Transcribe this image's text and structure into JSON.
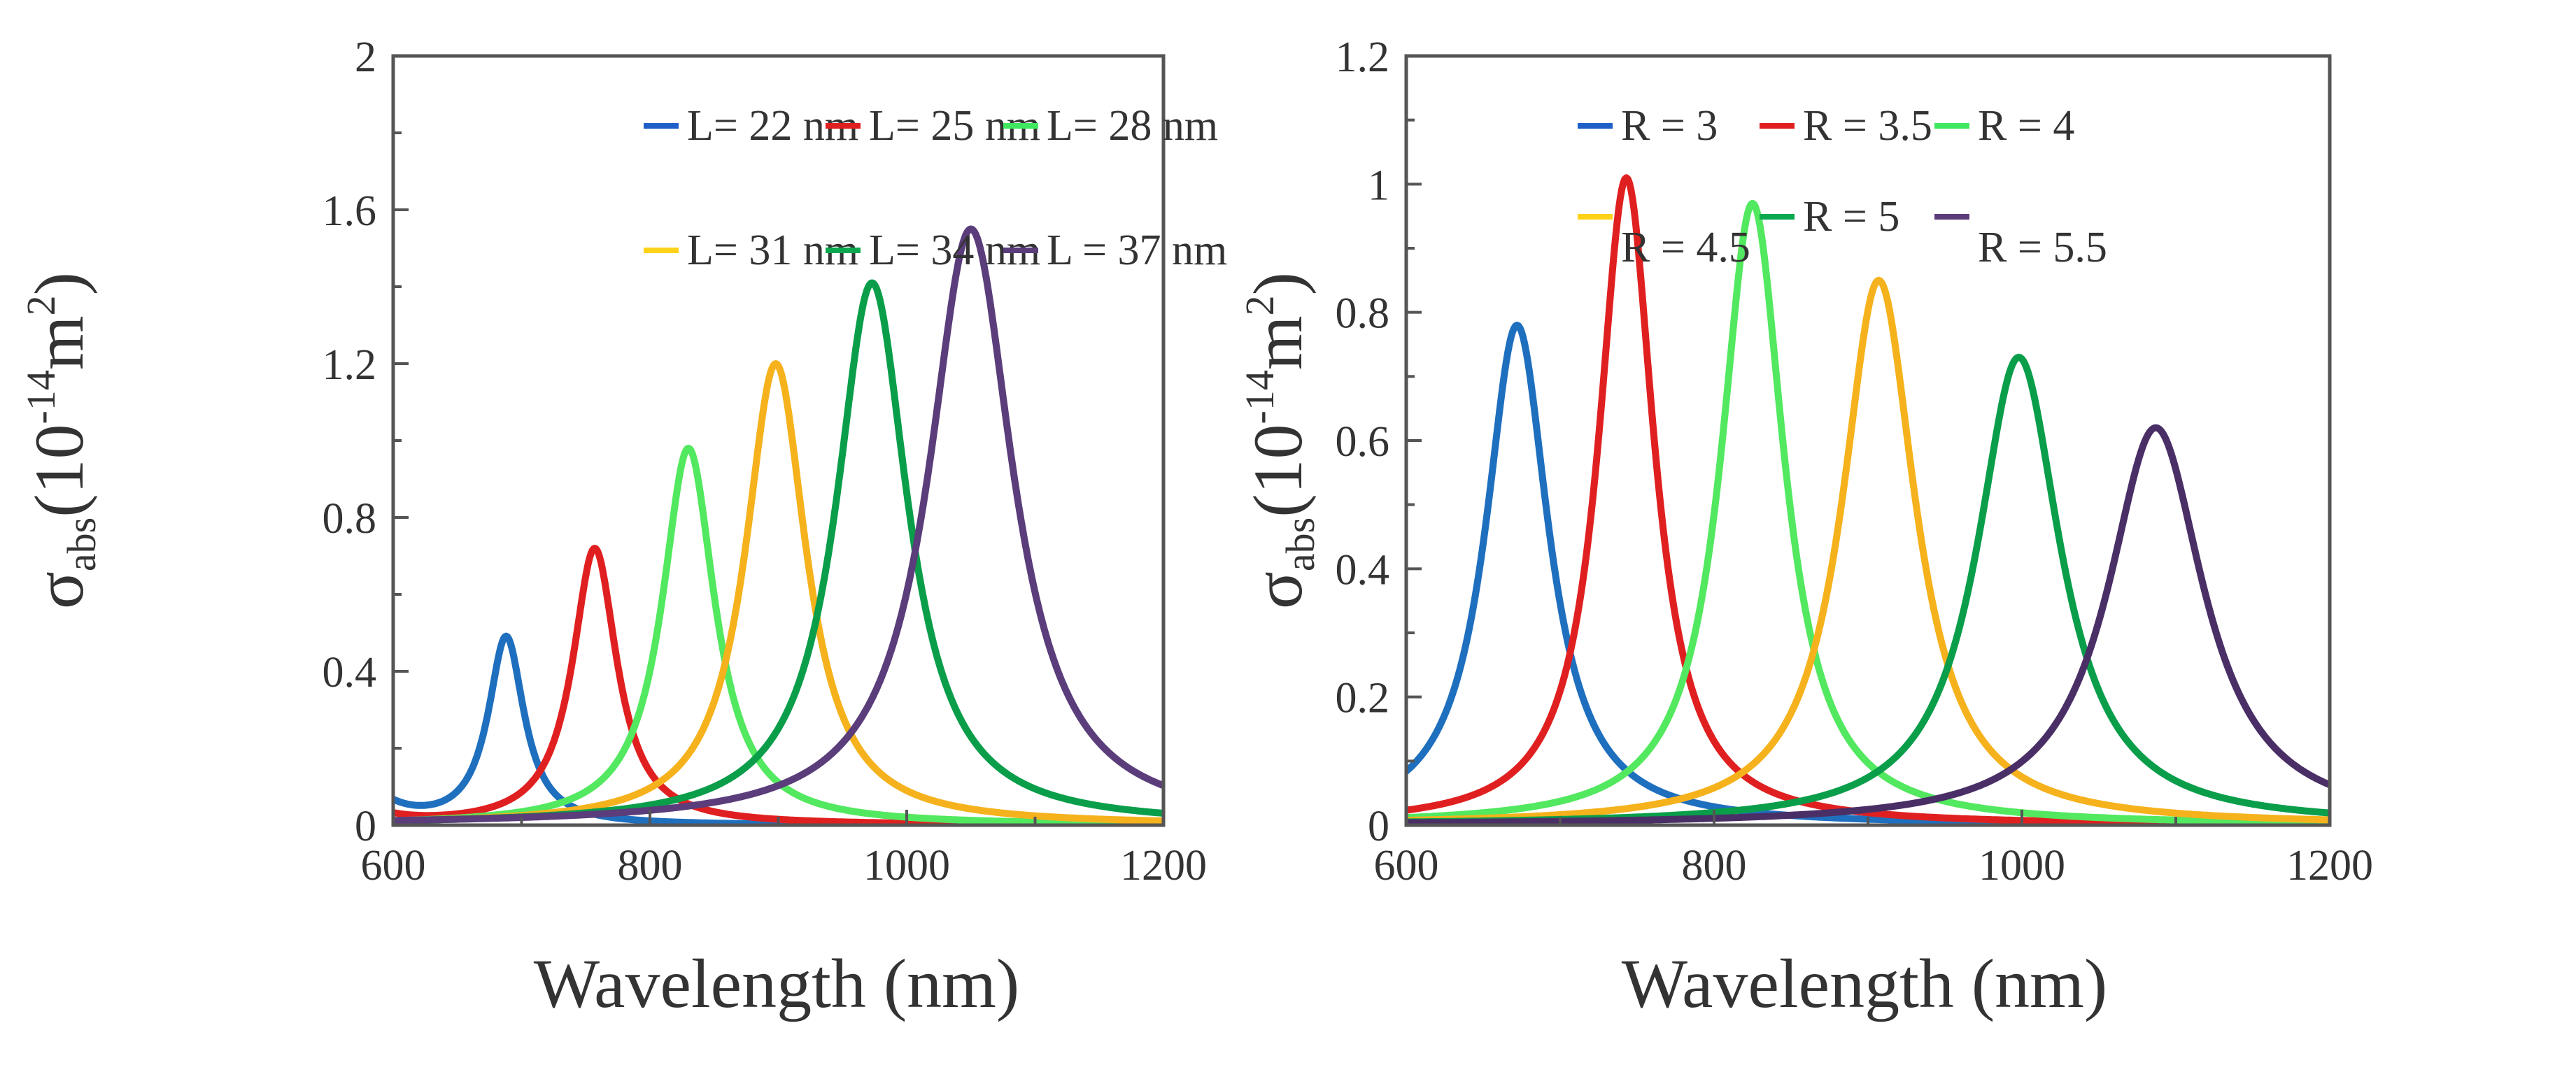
{
  "chart_data": [
    {
      "type": "line",
      "panel": "left",
      "xlabel": "Wavelength (nm)",
      "ylabel": {
        "main": "σ",
        "sub": "abs",
        "open": "(10",
        "exp": "-14",
        "unit": "m",
        "unit_exp": "2",
        "close": ")"
      },
      "xlim": [
        600,
        1200
      ],
      "ylim": [
        0,
        2
      ],
      "xticks": [
        600,
        800,
        1000,
        1200
      ],
      "xtick_labels": [
        "600",
        "800",
        "1000",
        "1200"
      ],
      "yticks": [
        0,
        0.4,
        0.8,
        1.2,
        1.6,
        2
      ],
      "ytick_labels": [
        "0",
        "0.4",
        "0.8",
        "1.2",
        "1.6",
        "2"
      ],
      "legend_placement": "top-right",
      "series": [
        {
          "name": "L= 22 nm",
          "color": "#1f60c8",
          "curve_color": "#1f6fbf",
          "peak_x": 688,
          "peak_y": 0.49,
          "gamma": 17,
          "baseline": 0.0,
          "left_tail": 0.05
        },
        {
          "name": "L= 25 nm",
          "color": "#e02020",
          "curve_color": "#e02020",
          "peak_x": 757,
          "peak_y": 0.72,
          "gamma": 21,
          "baseline": 0.0,
          "left_tail": 0.02
        },
        {
          "name": "L= 28 nm",
          "color": "#40e860",
          "curve_color": "#52e85f",
          "peak_x": 830,
          "peak_y": 0.98,
          "gamma": 25,
          "baseline": 0.0,
          "left_tail": 0.0
        },
        {
          "name": "L= 31 nm",
          "color": "#ffd21a",
          "curve_color": "#f5b21c",
          "peak_x": 898,
          "peak_y": 1.2,
          "gamma": 29,
          "baseline": 0.0,
          "left_tail": 0.0
        },
        {
          "name": "L= 34 nm",
          "color": "#0aa84f",
          "curve_color": "#0a9e4a",
          "peak_x": 973,
          "peak_y": 1.41,
          "gamma": 34,
          "baseline": 0.0,
          "left_tail": 0.0
        },
        {
          "name": "L = 37 nm",
          "color": "#5a3d7a",
          "curve_color": "#5a3d7a",
          "peak_x": 1050,
          "peak_y": 1.55,
          "gamma": 40,
          "baseline": 0.0,
          "left_tail": 0.0
        }
      ]
    },
    {
      "type": "line",
      "panel": "right",
      "xlabel": "Wavelength (nm)",
      "ylabel": {
        "main": "σ",
        "sub": "abs",
        "open": "(10",
        "exp": "-14",
        "unit": "m",
        "unit_exp": "2",
        "close": ")"
      },
      "xlim": [
        600,
        1200
      ],
      "ylim": [
        0,
        1.2
      ],
      "xticks": [
        600,
        800,
        1000,
        1200
      ],
      "xtick_labels": [
        "600",
        "800",
        "1000",
        "1200"
      ],
      "yticks": [
        0,
        0.2,
        0.4,
        0.6,
        0.8,
        1,
        1.2
      ],
      "ytick_labels": [
        "0",
        "0.2",
        "0.4",
        "0.6",
        "0.8",
        "1",
        "1.2"
      ],
      "legend_placement": "top",
      "series": [
        {
          "name": "R = 3",
          "color": "#1f60c8",
          "curve_color": "#1f6fbf",
          "peak_x": 672,
          "peak_y": 0.78,
          "gamma": 25,
          "baseline": 0.0,
          "left_tail": 0.0
        },
        {
          "name": "R = 3.5",
          "color": "#e02020",
          "curve_color": "#e02020",
          "peak_x": 743,
          "peak_y": 1.01,
          "gamma": 22,
          "baseline": 0.0,
          "left_tail": 0.0
        },
        {
          "name": "R = 4",
          "color": "#40e860",
          "curve_color": "#52e85f",
          "peak_x": 825,
          "peak_y": 0.97,
          "gamma": 25,
          "baseline": 0.0,
          "left_tail": 0.0
        },
        {
          "name": "R = 4.5",
          "color": "#ffd21a",
          "curve_color": "#f5b21c",
          "peak_x": 907,
          "peak_y": 0.85,
          "gamma": 29,
          "baseline": 0.0,
          "left_tail": 0.0
        },
        {
          "name": "R = 5",
          "color": "#0aa84f",
          "curve_color": "#0a9e4a",
          "peak_x": 998,
          "peak_y": 0.73,
          "gamma": 33,
          "baseline": 0.0,
          "left_tail": 0.0
        },
        {
          "name": "R = 5.5",
          "color": "#5a3d7a",
          "curve_color": "#4a2f66",
          "peak_x": 1087,
          "peak_y": 0.62,
          "gamma": 38,
          "baseline": 0.0,
          "left_tail": 0.0
        }
      ]
    }
  ]
}
